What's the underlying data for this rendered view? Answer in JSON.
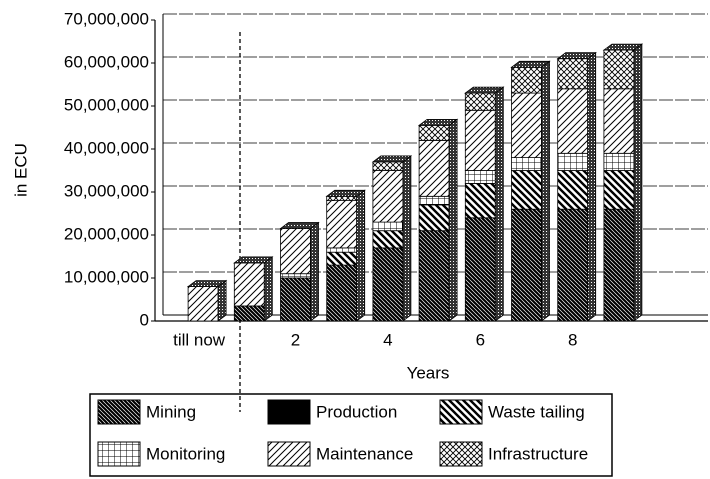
{
  "chart_data": {
    "type": "stacked_bar_3d",
    "y_axis_label": "in ECU",
    "x_axis_label": "Years",
    "categories": [
      "till now",
      null,
      "2",
      null,
      "4",
      null,
      "6",
      null,
      "8",
      null
    ],
    "series": [
      {
        "name": "Mining",
        "color": "#000000",
        "values": [
          0,
          3500000.0,
          10000000.0,
          13000000.0,
          17000000.0,
          21000000.0,
          24000000.0,
          26000000.0,
          26000000.0,
          26000000.0
        ]
      },
      {
        "name": "Production",
        "color": "#000000",
        "values": [
          0,
          0,
          0,
          0,
          0,
          0,
          0,
          0,
          0,
          0
        ]
      },
      {
        "name": "Waste tailing",
        "color": "#000000",
        "values": [
          0,
          0,
          0,
          3000000.0,
          4000000.0,
          6000000.0,
          8000000.0,
          9000000.0,
          9000000.0,
          9000000.0
        ]
      },
      {
        "name": "Monitoring",
        "color": "#000000",
        "values": [
          0,
          0,
          1000000.0,
          1000000.0,
          2000000.0,
          2000000.0,
          3000000.0,
          3000000.0,
          4000000.0,
          4000000.0
        ]
      },
      {
        "name": "Maintenance",
        "color": "#000000",
        "values": [
          8000000.0,
          10000000.0,
          10500000.0,
          11000000.0,
          12000000.0,
          13000000.0,
          14000000.0,
          15000000.0,
          15000000.0,
          15000000.0
        ]
      },
      {
        "name": "Infrastructure",
        "color": "#000000",
        "values": [
          0,
          0,
          0,
          1000000.0,
          2000000.0,
          3500000.0,
          4000000.0,
          6000000.0,
          7000000.0,
          9000000.0
        ]
      }
    ],
    "ylim": [
      0,
      70000000
    ],
    "yticks": [
      0,
      {
        "value": 10000000,
        "label": "10,000,000"
      },
      {
        "value": 20000000,
        "label": "20,000,000"
      },
      {
        "value": 30000000,
        "label": "30,000,000"
      },
      {
        "value": 40000000,
        "label": "40,000,000"
      },
      {
        "value": 50000000,
        "label": "50,000,000"
      },
      {
        "value": 60000000,
        "label": "60,000,000"
      },
      {
        "value": 70000000,
        "label": "70,000,000"
      }
    ],
    "grid": true
  }
}
